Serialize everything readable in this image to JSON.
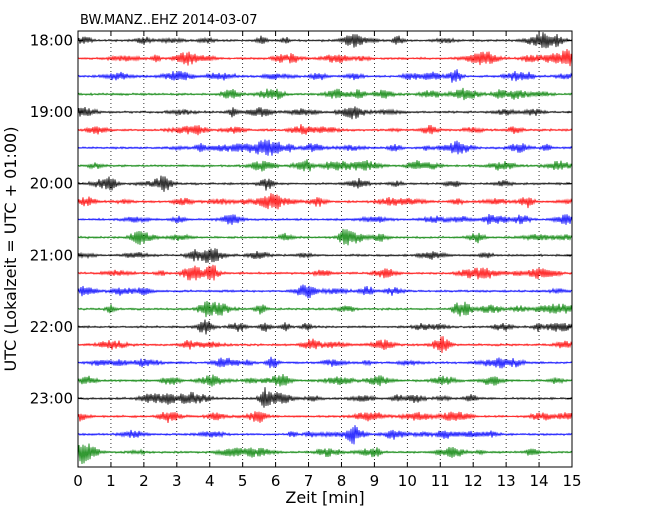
{
  "chart_data": {
    "type": "line",
    "title": "BW.MANZ..EHZ 2014-03-07",
    "xlabel": "Zeit  [min]",
    "ylabel": "UTC (Lokalzeit = UTC + 01:00)",
    "xlim": [
      0,
      15
    ],
    "xticks": [
      0,
      1,
      2,
      3,
      4,
      5,
      6,
      7,
      8,
      9,
      10,
      11,
      12,
      13,
      14,
      15
    ],
    "hour_labels": [
      "18:00",
      "19:00",
      "20:00",
      "21:00",
      "22:00",
      "23:00"
    ],
    "grid": "vertical dotted",
    "trace_colors": [
      "#000000",
      "#ff0000",
      "#0000ff",
      "#008000"
    ],
    "traces_per_hour": 4,
    "trace_count": 24,
    "trace_start_times": [
      "18:00",
      "18:15",
      "18:30",
      "18:45",
      "19:00",
      "19:15",
      "19:30",
      "19:45",
      "20:00",
      "20:15",
      "20:30",
      "20:45",
      "21:00",
      "21:15",
      "21:30",
      "21:45",
      "22:00",
      "22:15",
      "22:30",
      "22:45",
      "23:00",
      "23:15",
      "23:30",
      "23:45"
    ]
  }
}
